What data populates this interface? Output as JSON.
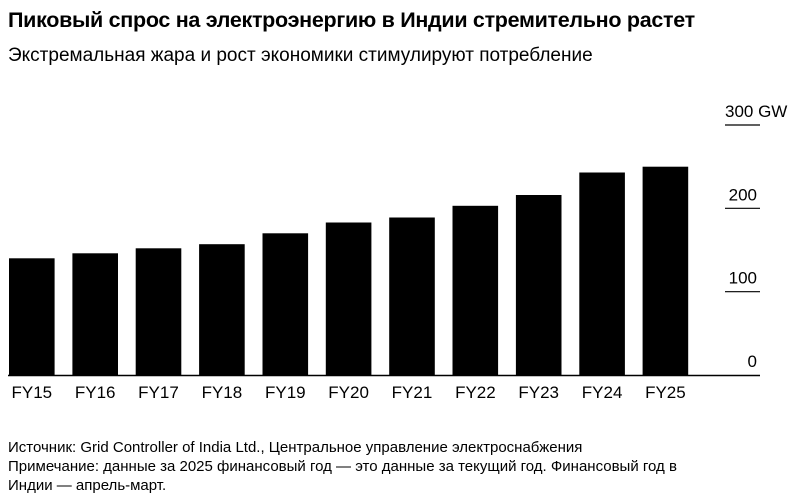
{
  "title": "Пиковый спрос на электроэнергию в Индии стремительно растет",
  "subtitle": "Экстремальная жара и рост экономики стимулируют потребление",
  "source": "Источник: Grid Controller of India Ltd., Центральное управление электроснабжения",
  "note_line1": "Примечание: данные за 2025 финансовый год — это данные за текущий год. Финансовый год в",
  "note_line2": "Индии — апрель-март.",
  "colors": {
    "bar": "#000000",
    "background": "#ffffff"
  },
  "chart_data": {
    "type": "bar",
    "categories": [
      "FY15",
      "FY16",
      "FY17",
      "FY18",
      "FY19",
      "FY20",
      "FY21",
      "FY22",
      "FY23",
      "FY24",
      "FY25"
    ],
    "values": [
      140,
      146,
      152,
      157,
      170,
      183,
      189,
      203,
      216,
      243,
      250
    ],
    "ylim": [
      0,
      300
    ],
    "yticks": [
      0,
      100,
      200,
      300
    ],
    "ytick_labels": [
      "0",
      "100",
      "200",
      "300 GW"
    ],
    "grid": false,
    "ylabel": "",
    "xlabel": ""
  }
}
